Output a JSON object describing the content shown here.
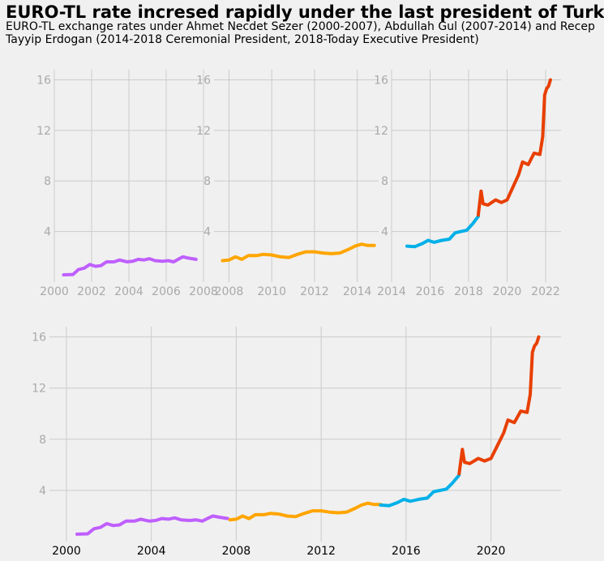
{
  "title": "EURO-TL rate incresed rapidly under the last president of Turkey",
  "subtitle": "EURO-TL exchange rates under Ahmet Necdet Sezer (2000-2007), Abdullah Gul (2007-2014) and Recep Tayyip Erdogan (2014-2018 Ceremonial President, 2018-Today Executive President)",
  "colors": {
    "sezer": "#bf5fff",
    "gul": "#ffa500",
    "erdogan_ceremonial": "#00b0e8",
    "erdogan_executive": "#e83f00",
    "background": "#f0f0f0",
    "grid": "#cbcbcb"
  },
  "chart_data": [
    {
      "type": "line",
      "panel": "top-left",
      "xlim": [
        2000,
        2008
      ],
      "ylim": [
        0,
        16.8
      ],
      "x_ticks": [
        "2000",
        "2002",
        "2004",
        "2006",
        "2008"
      ],
      "y_ticks": [
        "4",
        "8",
        "12",
        "16"
      ],
      "grid": true,
      "series_keys": [
        "sezer"
      ]
    },
    {
      "type": "line",
      "panel": "top-middle",
      "xlim": [
        2007.3,
        2015.0
      ],
      "ylim": [
        0,
        16.8
      ],
      "x_ticks": [
        "2008",
        "2010",
        "2012",
        "2014"
      ],
      "y_ticks": [
        "4",
        "8",
        "12",
        "16"
      ],
      "grid": true,
      "series_keys": [
        "gul"
      ]
    },
    {
      "type": "line",
      "panel": "top-right",
      "xlim": [
        2014.0,
        2022.8
      ],
      "ylim": [
        0,
        16.8
      ],
      "x_ticks": [
        "2014",
        "2016",
        "2018",
        "2020",
        "2022"
      ],
      "y_ticks": [
        "4",
        "8",
        "12",
        "16"
      ],
      "grid": true,
      "series_keys": [
        "erdogan_ceremonial",
        "erdogan_executive"
      ]
    },
    {
      "type": "line",
      "panel": "bottom",
      "xlim": [
        1999.2,
        2023.3
      ],
      "ylim": [
        0,
        16.8
      ],
      "x_ticks": [
        "2000",
        "2004",
        "2008",
        "2012",
        "2016",
        "2020"
      ],
      "y_ticks": [
        "4",
        "8",
        "12",
        "16"
      ],
      "grid": true,
      "series_keys": [
        "sezer",
        "gul",
        "erdogan_ceremonial",
        "erdogan_executive"
      ]
    }
  ],
  "series": {
    "sezer": {
      "color_key": "sezer",
      "points": [
        [
          2000.5,
          0.58
        ],
        [
          2001.0,
          0.6
        ],
        [
          2001.3,
          1.0
        ],
        [
          2001.6,
          1.1
        ],
        [
          2001.9,
          1.4
        ],
        [
          2002.2,
          1.25
        ],
        [
          2002.5,
          1.3
        ],
        [
          2002.8,
          1.6
        ],
        [
          2003.2,
          1.6
        ],
        [
          2003.5,
          1.75
        ],
        [
          2003.9,
          1.6
        ],
        [
          2004.2,
          1.65
        ],
        [
          2004.5,
          1.8
        ],
        [
          2004.8,
          1.75
        ],
        [
          2005.1,
          1.85
        ],
        [
          2005.4,
          1.7
        ],
        [
          2005.8,
          1.65
        ],
        [
          2006.1,
          1.7
        ],
        [
          2006.4,
          1.6
        ],
        [
          2006.7,
          1.85
        ],
        [
          2006.9,
          2.0
        ],
        [
          2007.2,
          1.9
        ],
        [
          2007.6,
          1.8
        ]
      ]
    },
    "gul": {
      "color_key": "gul",
      "points": [
        [
          2007.7,
          1.7
        ],
        [
          2008.0,
          1.75
        ],
        [
          2008.3,
          2.0
        ],
        [
          2008.6,
          1.8
        ],
        [
          2008.9,
          2.1
        ],
        [
          2009.3,
          2.1
        ],
        [
          2009.6,
          2.2
        ],
        [
          2010.0,
          2.15
        ],
        [
          2010.4,
          2.0
        ],
        [
          2010.8,
          1.95
        ],
        [
          2011.2,
          2.2
        ],
        [
          2011.6,
          2.4
        ],
        [
          2012.0,
          2.4
        ],
        [
          2012.4,
          2.3
        ],
        [
          2012.8,
          2.25
        ],
        [
          2013.2,
          2.3
        ],
        [
          2013.6,
          2.6
        ],
        [
          2013.9,
          2.85
        ],
        [
          2014.2,
          3.0
        ],
        [
          2014.5,
          2.9
        ],
        [
          2014.8,
          2.9
        ]
      ]
    },
    "erdogan_ceremonial": {
      "color_key": "erdogan_ceremonial",
      "points": [
        [
          2014.8,
          2.85
        ],
        [
          2015.2,
          2.8
        ],
        [
          2015.6,
          3.05
        ],
        [
          2015.9,
          3.3
        ],
        [
          2016.2,
          3.15
        ],
        [
          2016.6,
          3.3
        ],
        [
          2017.0,
          3.4
        ],
        [
          2017.3,
          3.9
        ],
        [
          2017.6,
          4.0
        ],
        [
          2017.9,
          4.1
        ],
        [
          2018.2,
          4.6
        ],
        [
          2018.5,
          5.2
        ]
      ]
    },
    "erdogan_executive": {
      "color_key": "erdogan_executive",
      "points": [
        [
          2018.5,
          5.3
        ],
        [
          2018.65,
          7.2
        ],
        [
          2018.75,
          6.2
        ],
        [
          2019.0,
          6.1
        ],
        [
          2019.4,
          6.5
        ],
        [
          2019.7,
          6.3
        ],
        [
          2020.0,
          6.5
        ],
        [
          2020.3,
          7.5
        ],
        [
          2020.6,
          8.5
        ],
        [
          2020.8,
          9.5
        ],
        [
          2021.1,
          9.3
        ],
        [
          2021.4,
          10.2
        ],
        [
          2021.7,
          10.1
        ],
        [
          2021.85,
          11.5
        ],
        [
          2021.95,
          14.8
        ],
        [
          2022.05,
          15.3
        ],
        [
          2022.15,
          15.5
        ],
        [
          2022.25,
          16.0
        ]
      ]
    }
  }
}
